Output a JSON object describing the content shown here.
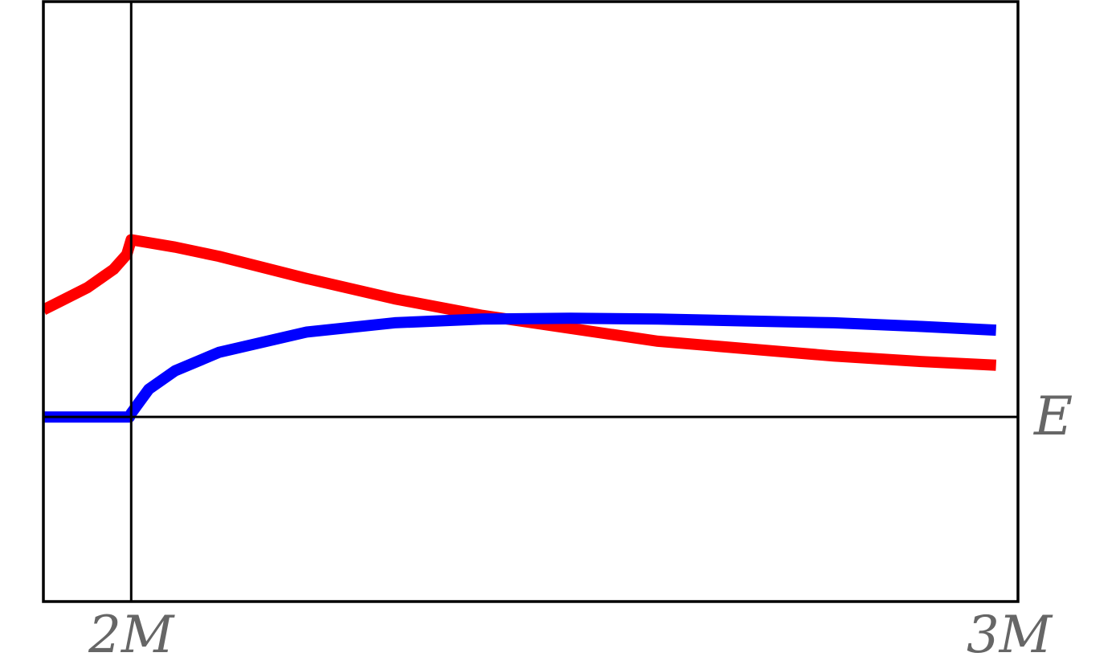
{
  "chart_data": {
    "type": "line",
    "title": "",
    "xlabel": "E",
    "ylabel": "",
    "grid": false,
    "legend": "none",
    "xlim": [
      1.9,
      3.01
    ],
    "ylim": [
      -1.0,
      2.25
    ],
    "x_ticks": [
      {
        "value": 2,
        "label": "2M"
      },
      {
        "value": 3,
        "label": "3M"
      }
    ],
    "reference_lines": {
      "vertical_x": 2,
      "horizontal_y": 0
    },
    "series": [
      {
        "color": "#ff0000",
        "x": [
          1.9,
          1.95,
          1.98,
          1.995,
          2.0,
          2.05,
          2.1,
          2.2,
          2.3,
          2.4,
          2.5,
          2.6,
          2.7,
          2.8,
          2.9,
          2.985
        ],
        "y": [
          0.58,
          0.7,
          0.8,
          0.88,
          0.96,
          0.92,
          0.87,
          0.75,
          0.64,
          0.55,
          0.48,
          0.41,
          0.37,
          0.33,
          0.3,
          0.28
        ]
      },
      {
        "color": "#0000ff",
        "x": [
          1.9,
          1.95,
          1.998,
          2.0,
          2.02,
          2.05,
          2.1,
          2.2,
          2.3,
          2.4,
          2.5,
          2.6,
          2.7,
          2.8,
          2.9,
          2.985
        ],
        "y": [
          0.0,
          0.0,
          0.0,
          0.02,
          0.15,
          0.25,
          0.35,
          0.46,
          0.51,
          0.53,
          0.535,
          0.53,
          0.52,
          0.51,
          0.49,
          0.47
        ]
      }
    ]
  }
}
